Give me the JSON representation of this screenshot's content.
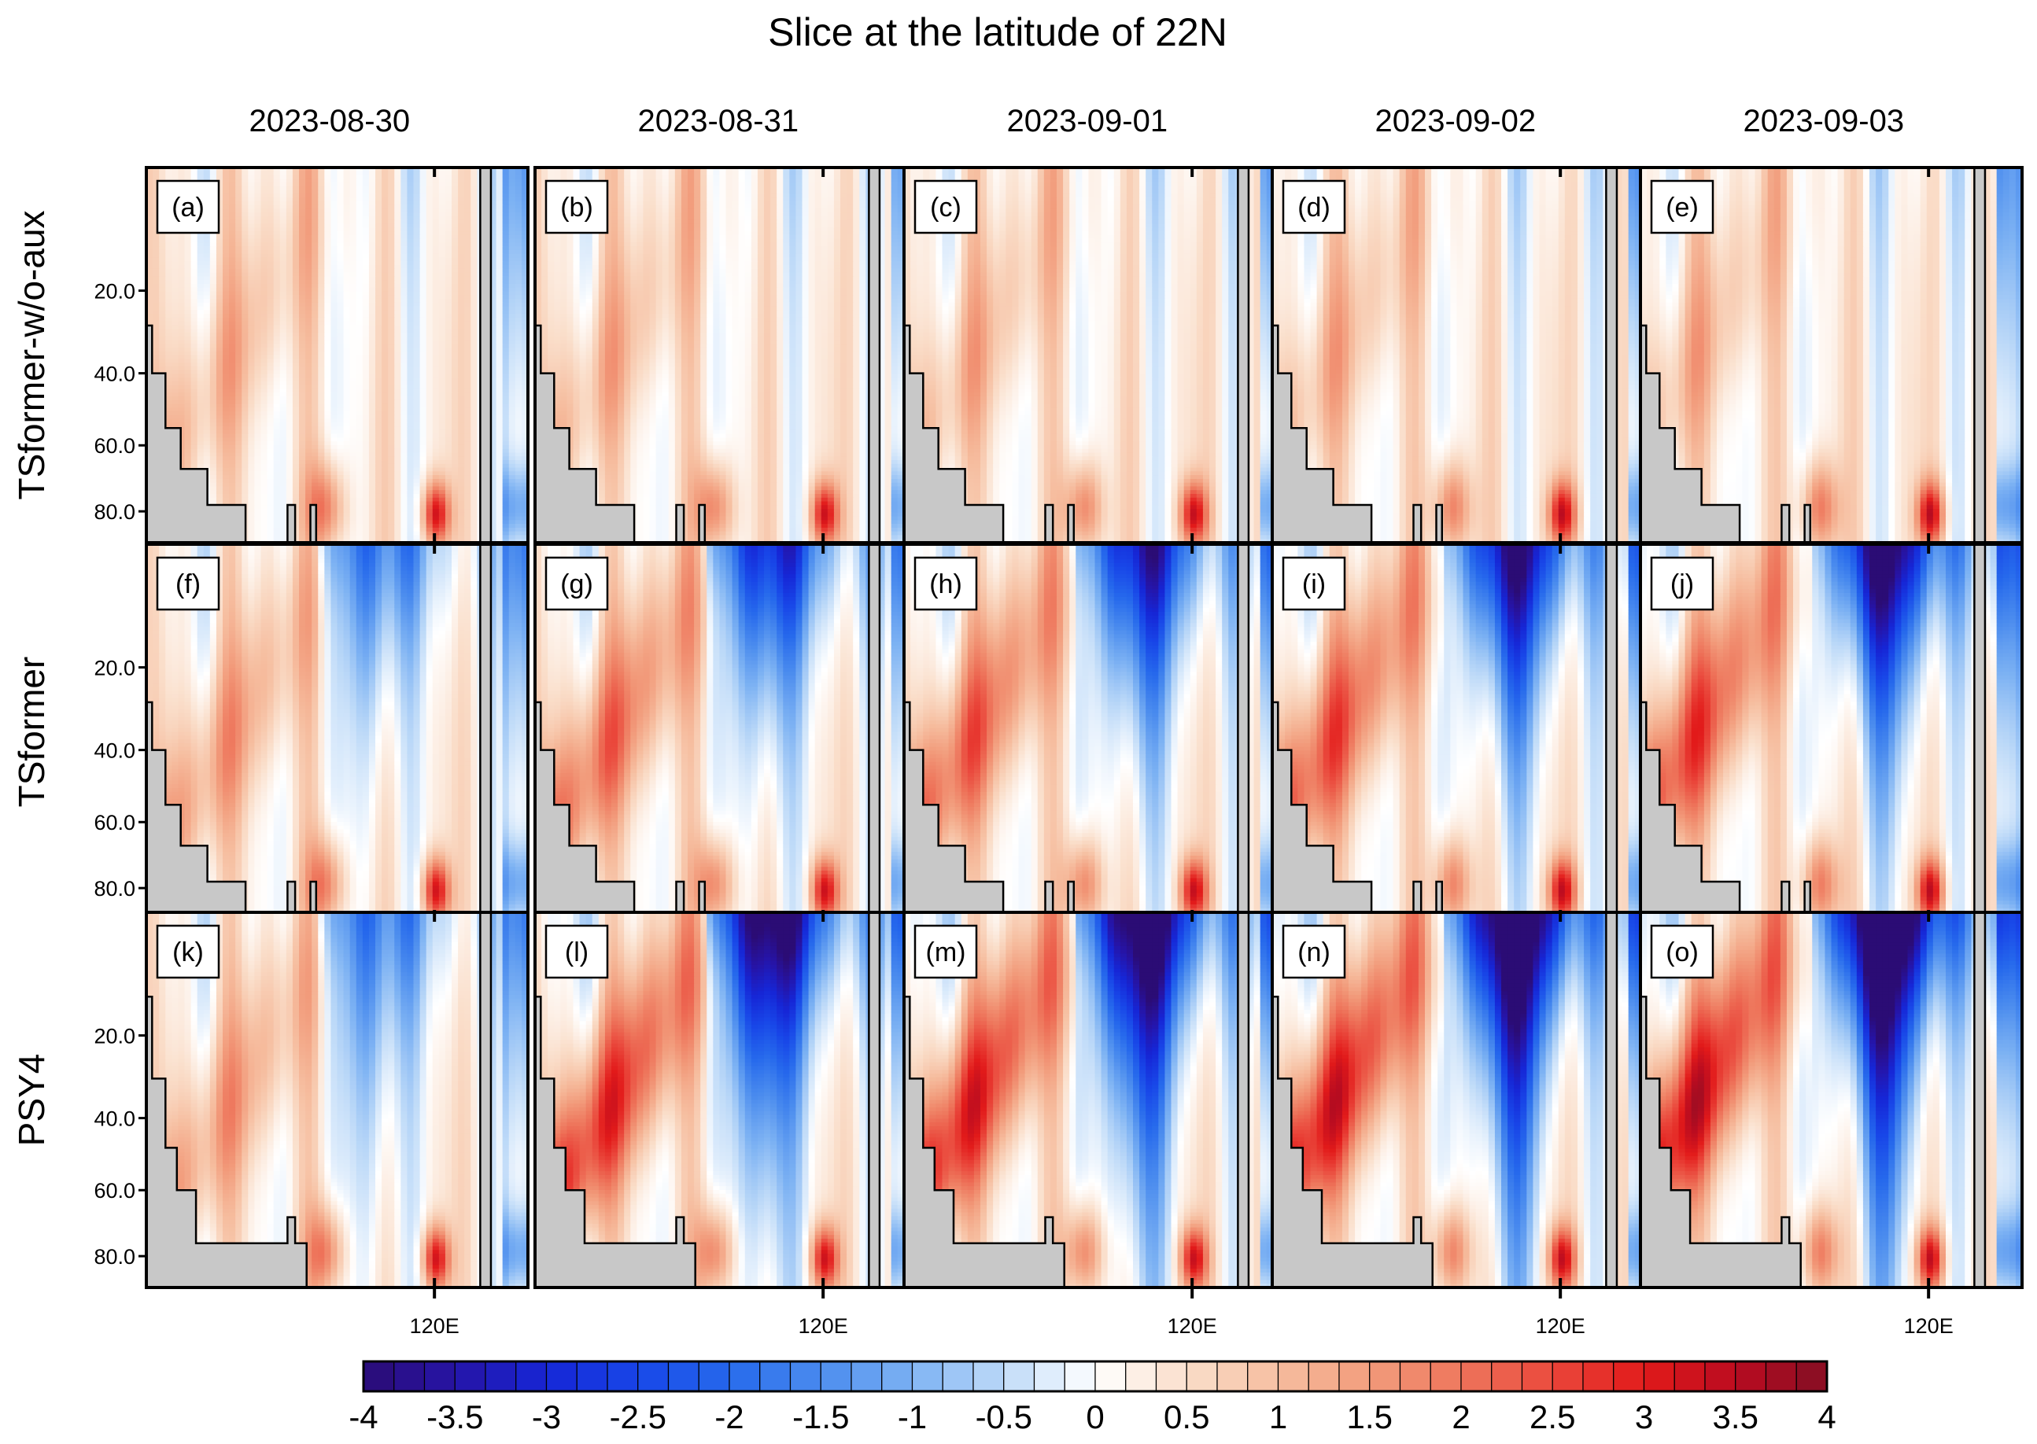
{
  "chart_data": {
    "type": "heatmap",
    "title": "Slice at the latitude of 22N",
    "columns": [
      "2023-08-30",
      "2023-08-31",
      "2023-09-01",
      "2023-09-02",
      "2023-09-03"
    ],
    "rows": [
      "TSformer-w/o-aux",
      "TSformer",
      "PSY4"
    ],
    "panel_labels": [
      "(a)",
      "(b)",
      "(c)",
      "(d)",
      "(e)",
      "(f)",
      "(g)",
      "(h)",
      "(i)",
      "(j)",
      "(k)",
      "(l)",
      "(m)",
      "(n)",
      "(o)"
    ],
    "y_ticks": [
      "20.0",
      "40.0",
      "60.0",
      "80.0"
    ],
    "x_tick": "120E",
    "colorbar": {
      "min": -4,
      "max": 4,
      "ticks": [
        "-4",
        "-3.5",
        "-3",
        "-2.5",
        "-2",
        "-1.5",
        "-1",
        "-0.5",
        "0",
        "0.5",
        "1",
        "1.5",
        "2",
        "2.5",
        "3",
        "3.5",
        "4"
      ]
    },
    "land_color": "#c8c8c8"
  }
}
